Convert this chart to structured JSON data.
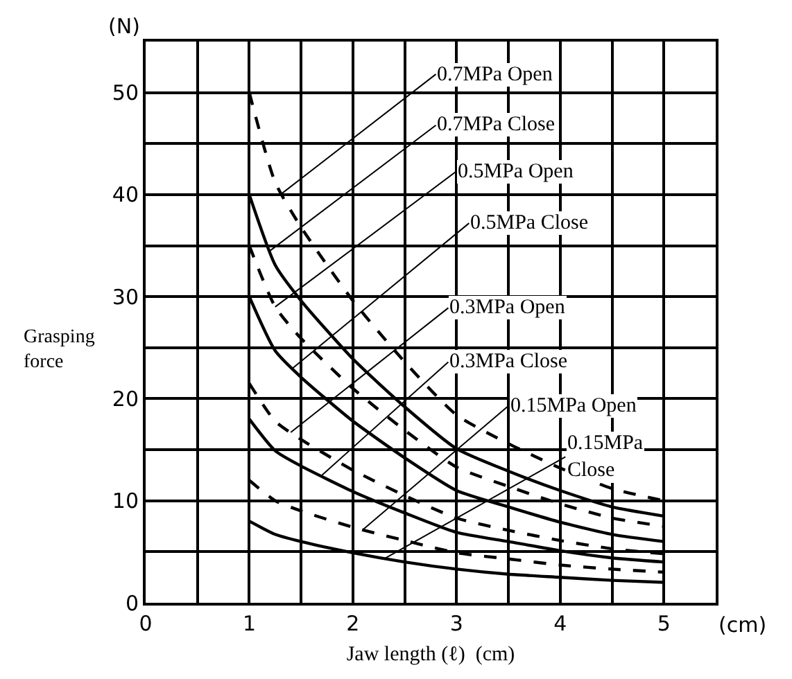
{
  "chart_data": {
    "type": "line",
    "xlabel": "Jaw length (ℓ)  (cm)",
    "ylabel": "Grasping force",
    "x": [
      1,
      1.25,
      1.5,
      2,
      2.5,
      3,
      3.5,
      4,
      4.5,
      5
    ],
    "series": [
      {
        "color": "#000000",
        "line_style": "dashed",
        "values": [
          50,
          41.2,
          36.8,
          29.6,
          23.6,
          18.4,
          15.6,
          13.2,
          11.2,
          10
        ]
      },
      {
        "color": "#000000",
        "line_style": "solid",
        "values": [
          40,
          33.1,
          29.6,
          23.9,
          19.2,
          15.1,
          12.9,
          11.0,
          9.4,
          8.5
        ]
      },
      {
        "color": "#000000",
        "line_style": "dashed",
        "values": [
          35,
          29.0,
          25.9,
          21.0,
          16.9,
          13.3,
          11.4,
          9.7,
          8.3,
          7.5
        ]
      },
      {
        "color": "#000000",
        "line_style": "solid",
        "values": [
          30,
          24.7,
          22.1,
          17.8,
          14.2,
          11.0,
          9.4,
          7.9,
          6.7,
          6
        ]
      },
      {
        "color": "#000000",
        "line_style": "dashed",
        "values": [
          21.5,
          17.8,
          16.0,
          13.0,
          10.5,
          8.3,
          7.1,
          6.1,
          5.3,
          4.8
        ]
      },
      {
        "color": "#000000",
        "line_style": "solid",
        "values": [
          18,
          14.9,
          13.4,
          10.9,
          8.8,
          6.9,
          6.0,
          5.1,
          4.4,
          4
        ]
      },
      {
        "color": "#000000",
        "line_style": "dashed",
        "values": [
          12,
          10.0,
          9.0,
          7.4,
          6.1,
          4.9,
          4.3,
          3.7,
          3.3,
          3
        ]
      },
      {
        "color": "#000000",
        "line_style": "solid",
        "values": [
          8,
          6.7,
          6.0,
          4.9,
          4.0,
          3.3,
          2.8,
          2.5,
          2.2,
          2
        ]
      }
    ],
    "xlim": [
      0,
      5.5
    ],
    "xticks": [
      0,
      {
        "value": 0.5,
        "label": null
      },
      1,
      {
        "value": 1.5,
        "label": null
      },
      2,
      {
        "value": 2.5,
        "label": null
      },
      3,
      {
        "value": 3.5,
        "label": null
      },
      4,
      {
        "value": 4.5,
        "label": null
      },
      5,
      {
        "value": 5.5,
        "label": null
      }
    ],
    "ylim": [
      0,
      55
    ],
    "yticks": [
      0,
      {
        "value": 5,
        "label": null
      },
      10,
      {
        "value": 15,
        "label": null
      },
      20,
      {
        "value": 25,
        "label": null
      },
      30,
      {
        "value": 35,
        "label": null
      },
      40,
      {
        "value": 45,
        "label": null
      },
      50,
      {
        "value": 55,
        "label": null
      }
    ],
    "grid": true,
    "marker": "none",
    "annotations": [
      {
        "text": "0.7MPa Open",
        "x": 1.3,
        "y": 40
      },
      {
        "text": "0.7MPa Close",
        "x": 1.2,
        "y": 34.5
      },
      {
        "text": "0.5MPa Open",
        "x": 1.25,
        "y": 29
      },
      {
        "text": "0.5MPa Close",
        "x": 1.42,
        "y": 23
      },
      {
        "text": "0.3MPa Open",
        "x": 1.4,
        "y": 16.7
      },
      {
        "text": "0.3MPa Close",
        "x": 1.7,
        "y": 12.5
      },
      {
        "text": "0.15MPa Open",
        "x": 2.1,
        "y": 7.2
      },
      {
        "text": "0.15MPa\nClose",
        "x": 2.3,
        "y": 4.3
      },
      "(N)",
      "(cm)"
    ]
  }
}
